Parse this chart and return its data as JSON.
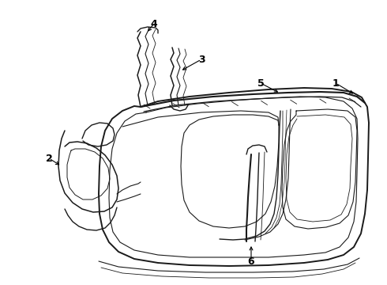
{
  "background_color": "#ffffff",
  "line_color": "#1a1a1a",
  "label_color": "#000000",
  "label_fontsize": 9,
  "label_fontweight": "bold",
  "fig_width": 4.9,
  "fig_height": 3.6,
  "dpi": 100
}
